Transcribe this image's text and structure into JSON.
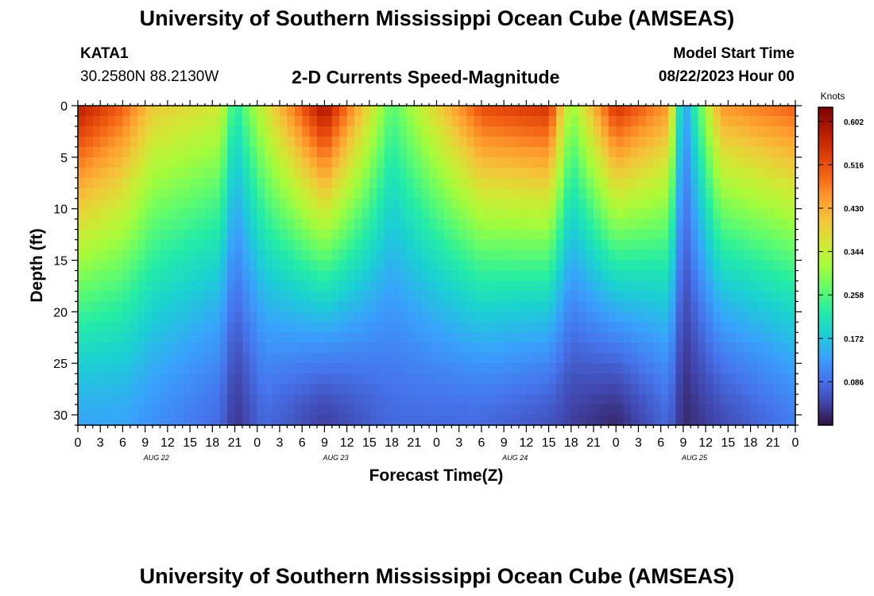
{
  "title": "University of Southern Mississippi Ocean Cube (AMSEAS)",
  "footer_title": "University of Southern Mississippi Ocean Cube (AMSEAS)",
  "station": {
    "id": "KATA1",
    "coords": "30.2580N  88.2130W"
  },
  "subtitle": "2-D Currents Speed-Magnitude",
  "model_start": {
    "label": "Model Start Time",
    "value": "08/22/2023 Hour 00"
  },
  "colorbar": {
    "title": "Knots",
    "ticks": [
      "0.602",
      "0.516",
      "0.430",
      "0.344",
      "0.258",
      "0.172",
      "0.086"
    ],
    "colors": [
      "#30123b",
      "#4145ab",
      "#4675ed",
      "#39a2fc",
      "#1bcfd4",
      "#24eca6",
      "#61fc6c",
      "#a4fc3b",
      "#d1e834",
      "#f3c63a",
      "#fe9b2d",
      "#f36315",
      "#d93806",
      "#b11901",
      "#7a0402"
    ]
  },
  "chart_data": {
    "type": "heatmap",
    "title": "2-D Currents Speed-Magnitude",
    "xlabel": "Forecast Time(Z)",
    "ylabel": "Depth (ft)",
    "units": "Knots",
    "value_range": [
      0.0,
      0.63
    ],
    "x_range_hours": [
      0,
      96
    ],
    "y_range_ft": [
      0,
      31
    ],
    "x_tick_labels": [
      "0",
      "3",
      "6",
      "9",
      "12",
      "15",
      "18",
      "21",
      "0",
      "3",
      "6",
      "9",
      "12",
      "15",
      "18",
      "21",
      "0",
      "3",
      "6",
      "9",
      "12",
      "15",
      "18",
      "21",
      "0",
      "3",
      "6",
      "9",
      "12",
      "15",
      "18",
      "21",
      "0"
    ],
    "date_labels": [
      "AUG 22",
      "AUG 23",
      "AUG 24",
      "AUG 25"
    ],
    "y_ticks": [
      0,
      5,
      10,
      15,
      20,
      25,
      30
    ],
    "surface_speed_by_hour": [
      {
        "hour": 0,
        "surface": 0.58,
        "bottom": 0.14
      },
      {
        "hour": 6,
        "surface": 0.5,
        "bottom": 0.14
      },
      {
        "hour": 10,
        "surface": 0.4,
        "bottom": 0.12
      },
      {
        "hour": 19,
        "surface": 0.36,
        "bottom": 0.08
      },
      {
        "hour": 21,
        "surface": 0.22,
        "bottom": 0.03
      },
      {
        "hour": 25,
        "surface": 0.36,
        "bottom": 0.08
      },
      {
        "hour": 33,
        "surface": 0.6,
        "bottom": 0.04
      },
      {
        "hour": 42,
        "surface": 0.26,
        "bottom": 0.08
      },
      {
        "hour": 54,
        "surface": 0.52,
        "bottom": 0.08
      },
      {
        "hour": 63,
        "surface": 0.55,
        "bottom": 0.06
      },
      {
        "hour": 66,
        "surface": 0.3,
        "bottom": 0.04
      },
      {
        "hour": 72,
        "surface": 0.55,
        "bottom": 0.02
      },
      {
        "hour": 79,
        "surface": 0.45,
        "bottom": 0.08
      },
      {
        "hour": 81,
        "surface": 0.12,
        "bottom": 0.02
      },
      {
        "hour": 86,
        "surface": 0.45,
        "bottom": 0.05
      },
      {
        "hour": 96,
        "surface": 0.5,
        "bottom": 0.1
      }
    ]
  }
}
